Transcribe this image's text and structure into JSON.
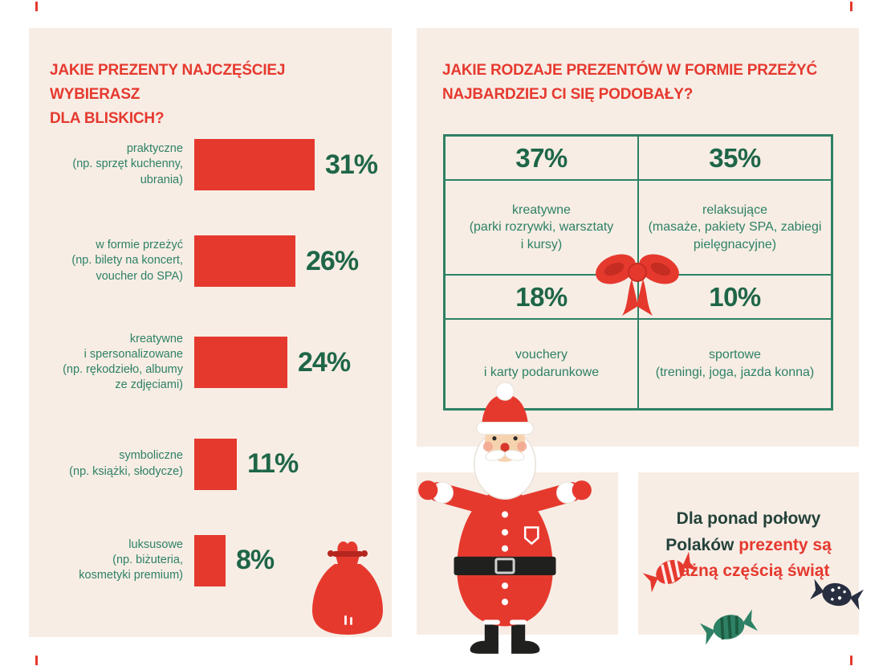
{
  "colors": {
    "panel_bg": "#f7ede5",
    "red": "#e6392e",
    "green": "#2e8164",
    "dark_green": "#1e6647",
    "dark_text": "#24423a",
    "navy": "#272e40"
  },
  "left_panel": {
    "title": "JAKIE PREZENTY NAJCZĘŚCIEJ WYBIERASZ\nDLA BLISKICH?",
    "rows": [
      {
        "label": "praktyczne\n(np. sprzęt kuchenny,\nubrania)",
        "pct": "31%"
      },
      {
        "label": "w formie przeżyć\n(np. bilety na koncert,\nvoucher do SPA)",
        "pct": "26%"
      },
      {
        "label": "kreatywne\ni spersonalizowane\n(np. rękodzieło, albumy\nze zdjęciami)",
        "pct": "24%"
      },
      {
        "label": "symboliczne\n(np. książki, słodycze)",
        "pct": "11%"
      },
      {
        "label": "luksusowe\n(np. biżuteria,\nkosmetyki premium)",
        "pct": "8%"
      }
    ]
  },
  "right_panel": {
    "title": "JAKIE RODZAJE PREZENTÓW W FORMIE PRZEŻYĆ\nNAJBARDZIEJ CI SIĘ PODOBAŁY?",
    "cells": [
      {
        "pct": "37%",
        "label": "kreatywne\n(parki rozrywki, warsztaty\ni kursy)"
      },
      {
        "pct": "35%",
        "label": "relaksujące\n(masaże, pakiety SPA, zabiegi\npielęgnacyjne)"
      },
      {
        "pct": "18%",
        "label": "vouchery\ni karty podarunkowe"
      },
      {
        "pct": "10%",
        "label": "sportowe\n(treningi, joga, jazda konna)"
      }
    ]
  },
  "footer": {
    "text_dark": "Dla ponad połowy Polaków",
    "text_red": "prezenty są ważną częścią świąt"
  },
  "illustrations": {
    "sack": "gift-sack",
    "santa": "santa-claus",
    "bow": "ribbon-bow",
    "candies": [
      "red-candy",
      "green-candy",
      "navy-candy"
    ]
  },
  "chart_data": [
    {
      "type": "bar",
      "orientation": "horizontal",
      "title": "JAKIE PREZENTY NAJCZĘŚCIEJ WYBIERASZ DLA BLISKICH?",
      "categories": [
        "praktyczne (np. sprzęt kuchenny, ubrania)",
        "w formie przeżyć (np. bilety na koncert, voucher do SPA)",
        "kreatywne i spersonalizowane (np. rękodzieło, albumy ze zdjęciami)",
        "symboliczne (np. książki, słodycze)",
        "luksusowe (np. biżuteria, kosmetyki premium)"
      ],
      "values": [
        31,
        26,
        24,
        11,
        8
      ],
      "unit": "%",
      "xlim": [
        0,
        35
      ],
      "bar_color": "#e6392e",
      "value_label_color": "#1e6647",
      "grid": false,
      "legend": false
    },
    {
      "type": "table",
      "title": "JAKIE RODZAJE PREZENTÓW W FORMIE PRZEŻYĆ NAJBARDZIEJ CI SIĘ PODOBAŁY?",
      "cells": [
        {
          "value": 37,
          "unit": "%",
          "label": "kreatywne (parki rozrywki, warsztaty i kursy)"
        },
        {
          "value": 35,
          "unit": "%",
          "label": "relaksujące (masaże, pakiety SPA, zabiegi pielęgnacyjne)"
        },
        {
          "value": 18,
          "unit": "%",
          "label": "vouchery i karty podarunkowe"
        },
        {
          "value": 10,
          "unit": "%",
          "label": "sportowe (treningi, joga, jazda konna)"
        }
      ],
      "layout": "2x2",
      "border_color": "#2e8164"
    }
  ]
}
